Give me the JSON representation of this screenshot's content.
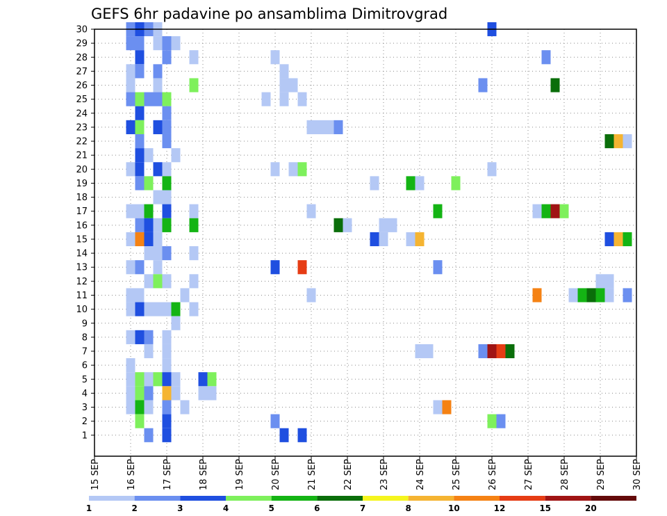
{
  "chart_data": {
    "type": "heatmap",
    "title": "GEFS 6hr padavine po ansamblima Dimitrovgrad",
    "x_tick_labels": [
      "15 SEP",
      "16 SEP",
      "17 SEP",
      "18 SEP",
      "19 SEP",
      "20 SEP",
      "21 SEP",
      "22 SEP",
      "23 SEP",
      "24 SEP",
      "25 SEP",
      "26 SEP",
      "27 SEP",
      "28 SEP",
      "29 SEP",
      "30 SEP"
    ],
    "y_tick_labels": [
      "1",
      "2",
      "3",
      "4",
      "5",
      "6",
      "7",
      "8",
      "9",
      "10",
      "11",
      "12",
      "13",
      "14",
      "15",
      "16",
      "17",
      "18",
      "19",
      "20",
      "21",
      "22",
      "23",
      "24",
      "25",
      "26",
      "27",
      "28",
      "29",
      "30"
    ],
    "members": [
      1,
      30
    ],
    "x_range": [
      "15 SEP 00Z",
      "30 SEP 00Z"
    ],
    "step_hours": 6,
    "grid": true,
    "colorbar": {
      "labels": [
        "1",
        "2",
        "3",
        "4",
        "5",
        "6",
        "7",
        "8",
        "10",
        "12",
        "15",
        "20"
      ],
      "colors": [
        "#b4c8f5",
        "#6b8ff0",
        "#1f4fe0",
        "#7ef05c",
        "#14b414",
        "#0a6e0a",
        "#f5f51e",
        "#f5b432",
        "#f58214",
        "#e63c14",
        "#a01414",
        "#640a0a"
      ]
    },
    "cells": [
      {
        "m": 30,
        "d": "16 SEP",
        "h": 0,
        "v": 2
      },
      {
        "m": 30,
        "d": "16 SEP",
        "h": 6,
        "v": 3
      },
      {
        "m": 30,
        "d": "16 SEP",
        "h": 12,
        "v": 2
      },
      {
        "m": 30,
        "d": "16 SEP",
        "h": 18,
        "v": 1
      },
      {
        "m": 30,
        "d": "26 SEP",
        "h": 0,
        "v": 3
      },
      {
        "m": 29,
        "d": "16 SEP",
        "h": 0,
        "v": 2
      },
      {
        "m": 29,
        "d": "16 SEP",
        "h": 6,
        "v": 2
      },
      {
        "m": 29,
        "d": "16 SEP",
        "h": 18,
        "v": 1
      },
      {
        "m": 29,
        "d": "17 SEP",
        "h": 0,
        "v": 2
      },
      {
        "m": 29,
        "d": "17 SEP",
        "h": 6,
        "v": 1
      },
      {
        "m": 28,
        "d": "16 SEP",
        "h": 6,
        "v": 3
      },
      {
        "m": 28,
        "d": "17 SEP",
        "h": 0,
        "v": 2
      },
      {
        "m": 28,
        "d": "17 SEP",
        "h": 18,
        "v": 1
      },
      {
        "m": 28,
        "d": "20 SEP",
        "h": 0,
        "v": 1
      },
      {
        "m": 28,
        "d": "27 SEP",
        "h": 12,
        "v": 2
      },
      {
        "m": 27,
        "d": "16 SEP",
        "h": 0,
        "v": 1
      },
      {
        "m": 27,
        "d": "16 SEP",
        "h": 6,
        "v": 2
      },
      {
        "m": 27,
        "d": "16 SEP",
        "h": 18,
        "v": 2
      },
      {
        "m": 27,
        "d": "20 SEP",
        "h": 6,
        "v": 1
      },
      {
        "m": 26,
        "d": "16 SEP",
        "h": 0,
        "v": 1
      },
      {
        "m": 26,
        "d": "16 SEP",
        "h": 18,
        "v": 1
      },
      {
        "m": 26,
        "d": "17 SEP",
        "h": 18,
        "v": 4
      },
      {
        "m": 26,
        "d": "20 SEP",
        "h": 6,
        "v": 1
      },
      {
        "m": 26,
        "d": "20 SEP",
        "h": 12,
        "v": 1
      },
      {
        "m": 26,
        "d": "25 SEP",
        "h": 18,
        "v": 2
      },
      {
        "m": 26,
        "d": "27 SEP",
        "h": 18,
        "v": 6
      },
      {
        "m": 25,
        "d": "16 SEP",
        "h": 0,
        "v": 2
      },
      {
        "m": 25,
        "d": "16 SEP",
        "h": 6,
        "v": 4
      },
      {
        "m": 25,
        "d": "16 SEP",
        "h": 12,
        "v": 2
      },
      {
        "m": 25,
        "d": "16 SEP",
        "h": 18,
        "v": 2
      },
      {
        "m": 25,
        "d": "17 SEP",
        "h": 0,
        "v": 4
      },
      {
        "m": 25,
        "d": "19 SEP",
        "h": 18,
        "v": 1
      },
      {
        "m": 25,
        "d": "20 SEP",
        "h": 6,
        "v": 1
      },
      {
        "m": 25,
        "d": "20 SEP",
        "h": 18,
        "v": 1
      },
      {
        "m": 24,
        "d": "16 SEP",
        "h": 6,
        "v": 3
      },
      {
        "m": 24,
        "d": "17 SEP",
        "h": 0,
        "v": 2
      },
      {
        "m": 23,
        "d": "16 SEP",
        "h": 0,
        "v": 3
      },
      {
        "m": 23,
        "d": "16 SEP",
        "h": 6,
        "v": 4
      },
      {
        "m": 23,
        "d": "16 SEP",
        "h": 18,
        "v": 3
      },
      {
        "m": 23,
        "d": "17 SEP",
        "h": 0,
        "v": 2
      },
      {
        "m": 23,
        "d": "21 SEP",
        "h": 0,
        "v": 1
      },
      {
        "m": 23,
        "d": "21 SEP",
        "h": 6,
        "v": 1
      },
      {
        "m": 23,
        "d": "21 SEP",
        "h": 12,
        "v": 1
      },
      {
        "m": 23,
        "d": "21 SEP",
        "h": 18,
        "v": 2
      },
      {
        "m": 22,
        "d": "16 SEP",
        "h": 6,
        "v": 2
      },
      {
        "m": 22,
        "d": "17 SEP",
        "h": 0,
        "v": 2
      },
      {
        "m": 22,
        "d": "29 SEP",
        "h": 6,
        "v": 6
      },
      {
        "m": 22,
        "d": "29 SEP",
        "h": 12,
        "v": 8
      },
      {
        "m": 22,
        "d": "29 SEP",
        "h": 18,
        "v": 1
      },
      {
        "m": 21,
        "d": "16 SEP",
        "h": 6,
        "v": 3
      },
      {
        "m": 21,
        "d": "16 SEP",
        "h": 12,
        "v": 1
      },
      {
        "m": 21,
        "d": "17 SEP",
        "h": 6,
        "v": 1
      },
      {
        "m": 20,
        "d": "16 SEP",
        "h": 0,
        "v": 1
      },
      {
        "m": 20,
        "d": "16 SEP",
        "h": 6,
        "v": 3
      },
      {
        "m": 20,
        "d": "16 SEP",
        "h": 18,
        "v": 3
      },
      {
        "m": 20,
        "d": "17 SEP",
        "h": 0,
        "v": 1
      },
      {
        "m": 20,
        "d": "20 SEP",
        "h": 0,
        "v": 1
      },
      {
        "m": 20,
        "d": "20 SEP",
        "h": 12,
        "v": 1
      },
      {
        "m": 20,
        "d": "20 SEP",
        "h": 18,
        "v": 4
      },
      {
        "m": 20,
        "d": "26 SEP",
        "h": 0,
        "v": 1
      },
      {
        "m": 19,
        "d": "16 SEP",
        "h": 6,
        "v": 2
      },
      {
        "m": 19,
        "d": "16 SEP",
        "h": 12,
        "v": 4
      },
      {
        "m": 19,
        "d": "17 SEP",
        "h": 0,
        "v": 5
      },
      {
        "m": 19,
        "d": "22 SEP",
        "h": 18,
        "v": 1
      },
      {
        "m": 19,
        "d": "23 SEP",
        "h": 18,
        "v": 5
      },
      {
        "m": 19,
        "d": "24 SEP",
        "h": 0,
        "v": 1
      },
      {
        "m": 19,
        "d": "25 SEP",
        "h": 0,
        "v": 4
      },
      {
        "m": 18,
        "d": "16 SEP",
        "h": 18,
        "v": 1
      },
      {
        "m": 18,
        "d": "17 SEP",
        "h": 0,
        "v": 1
      },
      {
        "m": 17,
        "d": "16 SEP",
        "h": 0,
        "v": 1
      },
      {
        "m": 17,
        "d": "16 SEP",
        "h": 6,
        "v": 1
      },
      {
        "m": 17,
        "d": "16 SEP",
        "h": 12,
        "v": 5
      },
      {
        "m": 17,
        "d": "17 SEP",
        "h": 0,
        "v": 3
      },
      {
        "m": 17,
        "d": "17 SEP",
        "h": 18,
        "v": 1
      },
      {
        "m": 17,
        "d": "21 SEP",
        "h": 0,
        "v": 1
      },
      {
        "m": 17,
        "d": "24 SEP",
        "h": 12,
        "v": 5
      },
      {
        "m": 17,
        "d": "27 SEP",
        "h": 6,
        "v": 1
      },
      {
        "m": 17,
        "d": "27 SEP",
        "h": 12,
        "v": 5
      },
      {
        "m": 17,
        "d": "27 SEP",
        "h": 18,
        "v": 15
      },
      {
        "m": 17,
        "d": "28 SEP",
        "h": 0,
        "v": 4
      },
      {
        "m": 16,
        "d": "16 SEP",
        "h": 6,
        "v": 2
      },
      {
        "m": 16,
        "d": "16 SEP",
        "h": 12,
        "v": 3
      },
      {
        "m": 16,
        "d": "16 SEP",
        "h": 18,
        "v": 1
      },
      {
        "m": 16,
        "d": "17 SEP",
        "h": 0,
        "v": 5
      },
      {
        "m": 16,
        "d": "17 SEP",
        "h": 18,
        "v": 5
      },
      {
        "m": 16,
        "d": "21 SEP",
        "h": 18,
        "v": 6
      },
      {
        "m": 16,
        "d": "22 SEP",
        "h": 0,
        "v": 1
      },
      {
        "m": 16,
        "d": "23 SEP",
        "h": 0,
        "v": 1
      },
      {
        "m": 16,
        "d": "23 SEP",
        "h": 6,
        "v": 1
      },
      {
        "m": 15,
        "d": "16 SEP",
        "h": 0,
        "v": 1
      },
      {
        "m": 15,
        "d": "16 SEP",
        "h": 6,
        "v": 10
      },
      {
        "m": 15,
        "d": "16 SEP",
        "h": 12,
        "v": 3
      },
      {
        "m": 15,
        "d": "16 SEP",
        "h": 18,
        "v": 1
      },
      {
        "m": 15,
        "d": "22 SEP",
        "h": 18,
        "v": 3
      },
      {
        "m": 15,
        "d": "23 SEP",
        "h": 0,
        "v": 1
      },
      {
        "m": 15,
        "d": "23 SEP",
        "h": 18,
        "v": 1
      },
      {
        "m": 15,
        "d": "24 SEP",
        "h": 0,
        "v": 8
      },
      {
        "m": 15,
        "d": "29 SEP",
        "h": 6,
        "v": 3
      },
      {
        "m": 15,
        "d": "29 SEP",
        "h": 12,
        "v": 8
      },
      {
        "m": 15,
        "d": "29 SEP",
        "h": 18,
        "v": 5
      },
      {
        "m": 14,
        "d": "16 SEP",
        "h": 12,
        "v": 1
      },
      {
        "m": 14,
        "d": "16 SEP",
        "h": 18,
        "v": 1
      },
      {
        "m": 14,
        "d": "17 SEP",
        "h": 0,
        "v": 2
      },
      {
        "m": 14,
        "d": "17 SEP",
        "h": 18,
        "v": 1
      },
      {
        "m": 13,
        "d": "16 SEP",
        "h": 0,
        "v": 1
      },
      {
        "m": 13,
        "d": "16 SEP",
        "h": 6,
        "v": 2
      },
      {
        "m": 13,
        "d": "16 SEP",
        "h": 18,
        "v": 1
      },
      {
        "m": 13,
        "d": "20 SEP",
        "h": 0,
        "v": 3
      },
      {
        "m": 13,
        "d": "20 SEP",
        "h": 18,
        "v": 12
      },
      {
        "m": 13,
        "d": "24 SEP",
        "h": 12,
        "v": 2
      },
      {
        "m": 12,
        "d": "16 SEP",
        "h": 12,
        "v": 1
      },
      {
        "m": 12,
        "d": "16 SEP",
        "h": 18,
        "v": 4
      },
      {
        "m": 12,
        "d": "17 SEP",
        "h": 0,
        "v": 1
      },
      {
        "m": 12,
        "d": "17 SEP",
        "h": 18,
        "v": 1
      },
      {
        "m": 12,
        "d": "29 SEP",
        "h": 0,
        "v": 1
      },
      {
        "m": 12,
        "d": "29 SEP",
        "h": 6,
        "v": 1
      },
      {
        "m": 11,
        "d": "16 SEP",
        "h": 0,
        "v": 1
      },
      {
        "m": 11,
        "d": "16 SEP",
        "h": 6,
        "v": 1
      },
      {
        "m": 11,
        "d": "17 SEP",
        "h": 12,
        "v": 1
      },
      {
        "m": 11,
        "d": "21 SEP",
        "h": 0,
        "v": 1
      },
      {
        "m": 11,
        "d": "27 SEP",
        "h": 6,
        "v": 10
      },
      {
        "m": 11,
        "d": "28 SEP",
        "h": 6,
        "v": 1
      },
      {
        "m": 11,
        "d": "28 SEP",
        "h": 12,
        "v": 5
      },
      {
        "m": 11,
        "d": "28 SEP",
        "h": 18,
        "v": 6
      },
      {
        "m": 11,
        "d": "29 SEP",
        "h": 0,
        "v": 5
      },
      {
        "m": 11,
        "d": "29 SEP",
        "h": 6,
        "v": 1
      },
      {
        "m": 11,
        "d": "29 SEP",
        "h": 18,
        "v": 2
      },
      {
        "m": 10,
        "d": "16 SEP",
        "h": 0,
        "v": 1
      },
      {
        "m": 10,
        "d": "16 SEP",
        "h": 6,
        "v": 3
      },
      {
        "m": 10,
        "d": "16 SEP",
        "h": 12,
        "v": 1
      },
      {
        "m": 10,
        "d": "16 SEP",
        "h": 18,
        "v": 1
      },
      {
        "m": 10,
        "d": "17 SEP",
        "h": 0,
        "v": 1
      },
      {
        "m": 10,
        "d": "17 SEP",
        "h": 6,
        "v": 5
      },
      {
        "m": 10,
        "d": "17 SEP",
        "h": 18,
        "v": 1
      },
      {
        "m": 9,
        "d": "17 SEP",
        "h": 6,
        "v": 1
      },
      {
        "m": 8,
        "d": "16 SEP",
        "h": 0,
        "v": 1
      },
      {
        "m": 8,
        "d": "16 SEP",
        "h": 6,
        "v": 3
      },
      {
        "m": 8,
        "d": "16 SEP",
        "h": 12,
        "v": 2
      },
      {
        "m": 8,
        "d": "17 SEP",
        "h": 0,
        "v": 1
      },
      {
        "m": 7,
        "d": "16 SEP",
        "h": 12,
        "v": 1
      },
      {
        "m": 7,
        "d": "17 SEP",
        "h": 0,
        "v": 1
      },
      {
        "m": 7,
        "d": "24 SEP",
        "h": 0,
        "v": 1
      },
      {
        "m": 7,
        "d": "24 SEP",
        "h": 6,
        "v": 1
      },
      {
        "m": 7,
        "d": "25 SEP",
        "h": 18,
        "v": 2
      },
      {
        "m": 7,
        "d": "26 SEP",
        "h": 0,
        "v": 15
      },
      {
        "m": 7,
        "d": "26 SEP",
        "h": 6,
        "v": 12
      },
      {
        "m": 7,
        "d": "26 SEP",
        "h": 12,
        "v": 6
      },
      {
        "m": 6,
        "d": "16 SEP",
        "h": 0,
        "v": 1
      },
      {
        "m": 6,
        "d": "17 SEP",
        "h": 0,
        "v": 1
      },
      {
        "m": 5,
        "d": "16 SEP",
        "h": 0,
        "v": 1
      },
      {
        "m": 5,
        "d": "16 SEP",
        "h": 6,
        "v": 4
      },
      {
        "m": 5,
        "d": "16 SEP",
        "h": 12,
        "v": 1
      },
      {
        "m": 5,
        "d": "16 SEP",
        "h": 18,
        "v": 4
      },
      {
        "m": 5,
        "d": "17 SEP",
        "h": 0,
        "v": 3
      },
      {
        "m": 5,
        "d": "17 SEP",
        "h": 6,
        "v": 1
      },
      {
        "m": 5,
        "d": "18 SEP",
        "h": 0,
        "v": 3
      },
      {
        "m": 5,
        "d": "18 SEP",
        "h": 6,
        "v": 4
      },
      {
        "m": 4,
        "d": "16 SEP",
        "h": 0,
        "v": 1
      },
      {
        "m": 4,
        "d": "16 SEP",
        "h": 6,
        "v": 4
      },
      {
        "m": 4,
        "d": "16 SEP",
        "h": 12,
        "v": 2
      },
      {
        "m": 4,
        "d": "17 SEP",
        "h": 0,
        "v": 8
      },
      {
        "m": 4,
        "d": "17 SEP",
        "h": 6,
        "v": 1
      },
      {
        "m": 4,
        "d": "18 SEP",
        "h": 0,
        "v": 1
      },
      {
        "m": 4,
        "d": "18 SEP",
        "h": 6,
        "v": 1
      },
      {
        "m": 3,
        "d": "16 SEP",
        "h": 0,
        "v": 1
      },
      {
        "m": 3,
        "d": "16 SEP",
        "h": 6,
        "v": 5
      },
      {
        "m": 3,
        "d": "16 SEP",
        "h": 12,
        "v": 1
      },
      {
        "m": 3,
        "d": "17 SEP",
        "h": 0,
        "v": 2
      },
      {
        "m": 3,
        "d": "17 SEP",
        "h": 12,
        "v": 1
      },
      {
        "m": 3,
        "d": "24 SEP",
        "h": 12,
        "v": 1
      },
      {
        "m": 3,
        "d": "24 SEP",
        "h": 18,
        "v": 10
      },
      {
        "m": 2,
        "d": "16 SEP",
        "h": 6,
        "v": 4
      },
      {
        "m": 2,
        "d": "17 SEP",
        "h": 0,
        "v": 3
      },
      {
        "m": 2,
        "d": "20 SEP",
        "h": 0,
        "v": 2
      },
      {
        "m": 2,
        "d": "26 SEP",
        "h": 0,
        "v": 4
      },
      {
        "m": 2,
        "d": "26 SEP",
        "h": 6,
        "v": 2
      },
      {
        "m": 1,
        "d": "16 SEP",
        "h": 12,
        "v": 2
      },
      {
        "m": 1,
        "d": "17 SEP",
        "h": 0,
        "v": 3
      },
      {
        "m": 1,
        "d": "20 SEP",
        "h": 6,
        "v": 3
      },
      {
        "m": 1,
        "d": "20 SEP",
        "h": 18,
        "v": 3
      }
    ]
  }
}
